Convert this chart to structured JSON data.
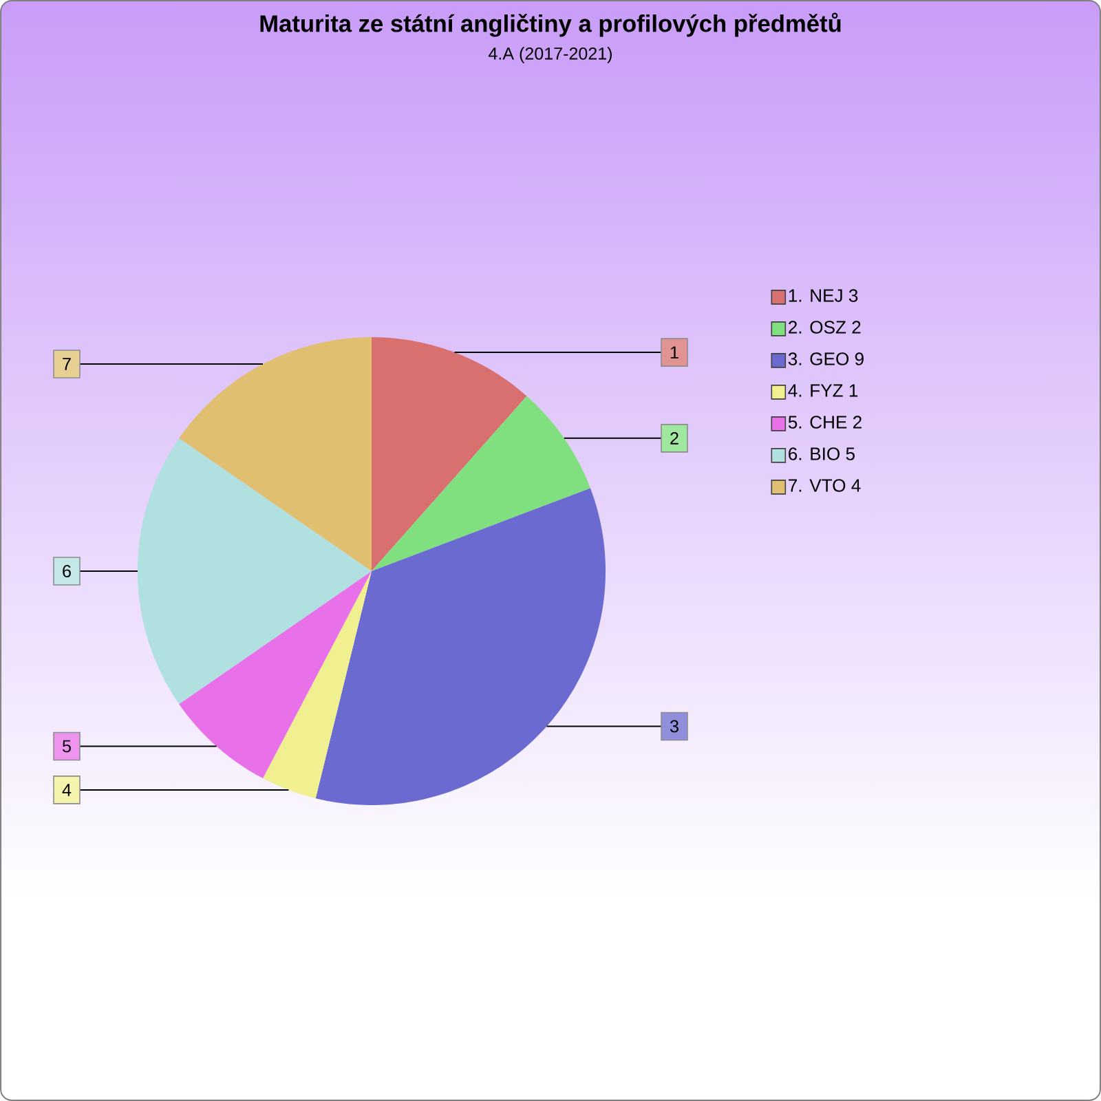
{
  "chart_data": {
    "type": "pie",
    "title": "Maturita ze státní angličtiny a profilových předmětů",
    "subtitle": "4.A (2017-2021)",
    "categories": [
      "1. NEJ 3",
      "2. OSZ 2",
      "3. GEO 9",
      "4. FYZ 1",
      "5. CHE 2",
      "6. BIO 5",
      "7. VTO 4"
    ],
    "values": [
      3,
      2,
      9,
      1,
      2,
      5,
      4
    ],
    "colors": [
      "#d87070",
      "#80e080",
      "#6a6ad0",
      "#f0f090",
      "#e870e8",
      "#b0e0e0",
      "#e0c070"
    ],
    "legend": "right",
    "annotations": [
      "1",
      "2",
      "3",
      "4",
      "5",
      "6",
      "7"
    ]
  }
}
